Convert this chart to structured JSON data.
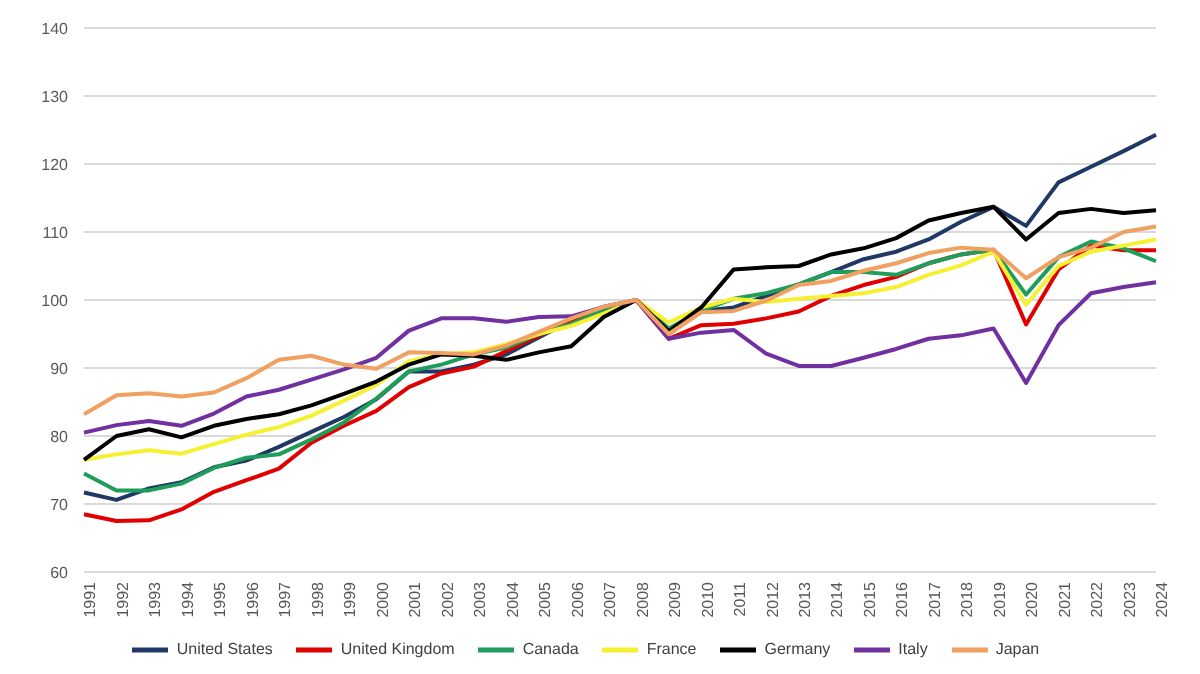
{
  "chart_data": {
    "type": "line",
    "categories": [
      "1991",
      "1992",
      "1993",
      "1994",
      "1995",
      "1996",
      "1997",
      "1998",
      "1999",
      "2000",
      "2001",
      "2002",
      "2003",
      "2004",
      "2005",
      "2006",
      "2007",
      "2008",
      "2009",
      "2010",
      "2011",
      "2012",
      "2013",
      "2014",
      "2015",
      "2016",
      "2017",
      "2018",
      "2019",
      "2020",
      "2021",
      "2022",
      "2023",
      "2024"
    ],
    "ylim": [
      60,
      140
    ],
    "yticks": [
      60,
      70,
      80,
      90,
      100,
      110,
      120,
      130,
      140
    ],
    "grid": "y",
    "legend": "bottom",
    "marker": "none",
    "line_style": "solid",
    "series": [
      {
        "name": "United States",
        "color": "#1f3864",
        "values": [
          71.7,
          70.6,
          72.3,
          73.2,
          75.4,
          76.4,
          78.4,
          80.6,
          82.8,
          85.4,
          89.5,
          89.5,
          90.5,
          92,
          94.5,
          97,
          98.5,
          100,
          95,
          98.4,
          98.9,
          100.6,
          102.3,
          104.1,
          106,
          107.1,
          108.9,
          111.5,
          113.7,
          110.9,
          117.3,
          119.6,
          121.9,
          124.3
        ]
      },
      {
        "name": "United Kingdom",
        "color": "#e00000",
        "values": [
          68.5,
          67.5,
          67.6,
          69.2,
          71.8,
          73.5,
          75.2,
          79,
          81.5,
          83.7,
          87.2,
          89.2,
          90.2,
          92.5,
          94.8,
          97,
          98.5,
          100,
          94.3,
          96.3,
          96.5,
          97.3,
          98.3,
          100.6,
          102.2,
          103.4,
          105.4,
          106.7,
          107.4,
          96.4,
          104.5,
          108,
          107.3,
          107.3
        ]
      },
      {
        "name": "Canada",
        "color": "#1e9e5a",
        "values": [
          74.5,
          72,
          72,
          73,
          75.3,
          76.8,
          77.3,
          79.5,
          82,
          85.5,
          89.5,
          90.5,
          92,
          93,
          95,
          96.5,
          98.5,
          100,
          95.8,
          98.4,
          100.2,
          101,
          102.3,
          104.1,
          104.1,
          103.7,
          105.4,
          106.7,
          107.4,
          100.8,
          106.3,
          108.6,
          107.6,
          105.7
        ]
      },
      {
        "name": "France",
        "color": "#f5f032",
        "values": [
          76.5,
          77.3,
          77.9,
          77.4,
          78.8,
          80.2,
          81.3,
          83,
          85.2,
          87.5,
          91,
          92,
          92.3,
          93.5,
          95,
          96.2,
          98,
          100,
          96.7,
          98.9,
          100.2,
          99.7,
          100.2,
          100.6,
          101,
          101.9,
          103.7,
          105.1,
          107.1,
          99.3,
          105,
          107.1,
          108,
          108.9
        ]
      },
      {
        "name": "Germany",
        "color": "#000000",
        "values": [
          76.5,
          80,
          81,
          79.8,
          81.5,
          82.5,
          83.2,
          84.5,
          86.2,
          88,
          90.5,
          92,
          91.8,
          91.2,
          92.3,
          93.2,
          97.5,
          100,
          95.4,
          98.9,
          104.5,
          104.8,
          105,
          106.7,
          107.6,
          109.1,
          111.7,
          112.8,
          113.7,
          108.9,
          112.8,
          113.4,
          112.8,
          113.2
        ]
      },
      {
        "name": "Italy",
        "color": "#7030a0",
        "values": [
          80.5,
          81.6,
          82.2,
          81.5,
          83.3,
          85.8,
          86.8,
          88.3,
          89.8,
          91.5,
          95.5,
          97.3,
          97.3,
          96.8,
          97.5,
          97.6,
          99,
          100,
          94.3,
          95.2,
          95.6,
          92.1,
          90.3,
          90.3,
          91.5,
          92.8,
          94.3,
          94.8,
          95.8,
          87.8,
          96.3,
          101,
          101.9,
          102.6
        ]
      },
      {
        "name": "Japan",
        "color": "#f0a060",
        "values": [
          83.2,
          86,
          86.3,
          85.8,
          86.4,
          88.5,
          91.2,
          91.8,
          90.5,
          89.9,
          92.3,
          92.2,
          92,
          93.3,
          95.3,
          97.3,
          99,
          100,
          95,
          98.2,
          98.4,
          99.9,
          102.2,
          102.8,
          104.3,
          105.4,
          106.9,
          107.7,
          107.4,
          103.2,
          106.3,
          107.7,
          110,
          110.8
        ]
      }
    ]
  }
}
